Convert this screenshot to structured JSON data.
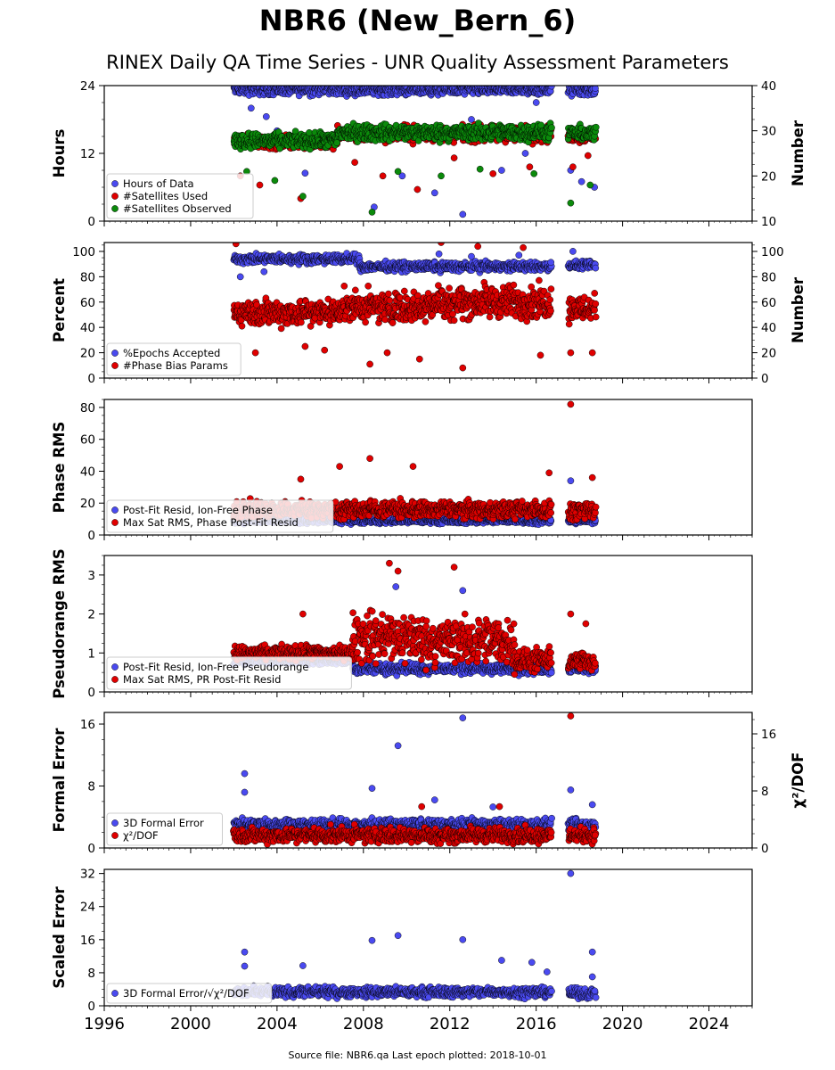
{
  "title": "NBR6 (New_Bern_6)",
  "subtitle": "RINEX Daily QA Time Series - UNR Quality Assessment Parameters",
  "footer": "Source file: NBR6.qa Last epoch plotted: 2018-10-01",
  "colors": {
    "blue": "#4a4af0",
    "red": "#e00000",
    "green": "#0b8a0b",
    "edge": "#000000"
  },
  "chart_data": [
    {
      "type": "scatter",
      "ylabel": "Hours",
      "ylabel_right": "Number",
      "ylim": [
        0,
        24
      ],
      "yticks": [
        0,
        12,
        24
      ],
      "ylim_right": [
        10,
        40
      ],
      "yticks_right": [
        10,
        20,
        30,
        40
      ],
      "xlim": [
        1996,
        2026
      ],
      "legend": "lower-left",
      "series": [
        {
          "name": "Hours of Data",
          "color": "blue",
          "axis": "left",
          "segments": [
            {
              "x": [
                2002.0,
                2016.7
              ],
              "base": 23.3,
              "spread": 0.8,
              "outliers": [
                [
                  2002.8,
                  20.0
                ],
                [
                  2003.5,
                  18.5
                ],
                [
                  2004.0,
                  16.0
                ],
                [
                  2005.3,
                  8.5
                ],
                [
                  2006.1,
                  14.5
                ],
                [
                  2008.5,
                  2.5
                ],
                [
                  2009.8,
                  8.0
                ],
                [
                  2011.3,
                  5.0
                ],
                [
                  2012.6,
                  1.2
                ],
                [
                  2013.0,
                  18.0
                ],
                [
                  2014.4,
                  9.0
                ],
                [
                  2015.5,
                  12.0
                ],
                [
                  2016.0,
                  21.0
                ]
              ]
            },
            {
              "x": [
                2017.5,
                2018.75
              ],
              "base": 23.2,
              "spread": 0.9,
              "outliers": [
                [
                  2017.6,
                  9.0
                ],
                [
                  2018.1,
                  7.0
                ],
                [
                  2018.7,
                  6.0
                ]
              ]
            }
          ]
        },
        {
          "name": "#Satellites Used",
          "color": "red",
          "axis": "right",
          "segments": [
            {
              "x": [
                2002.0,
                2006.8
              ],
              "base": 27.5,
              "spread": 1.3,
              "outliers": [
                [
                  2002.3,
                  20.0
                ],
                [
                  2003.2,
                  18.0
                ],
                [
                  2005.1,
                  15.0
                ]
              ]
            },
            {
              "x": [
                2006.8,
                2016.7
              ],
              "base": 29.3,
              "spread": 1.5,
              "outliers": [
                [
                  2007.6,
                  23.0
                ],
                [
                  2008.9,
                  20.0
                ],
                [
                  2010.5,
                  17.0
                ],
                [
                  2012.2,
                  24.0
                ],
                [
                  2014.0,
                  20.5
                ],
                [
                  2015.7,
                  22.0
                ]
              ]
            },
            {
              "x": [
                2017.5,
                2018.75
              ],
              "base": 29.0,
              "spread": 1.4,
              "outliers": [
                [
                  2017.7,
                  22.0
                ],
                [
                  2018.4,
                  24.5
                ]
              ]
            }
          ]
        },
        {
          "name": "#Satellites Observed",
          "color": "green",
          "axis": "right",
          "segments": [
            {
              "x": [
                2002.0,
                2006.8
              ],
              "base": 27.8,
              "spread": 1.4,
              "outliers": [
                [
                  2002.6,
                  21.0
                ],
                [
                  2003.9,
                  19.0
                ],
                [
                  2005.2,
                  15.5
                ]
              ]
            },
            {
              "x": [
                2006.8,
                2016.7
              ],
              "base": 29.6,
              "spread": 1.5,
              "outliers": [
                [
                  2008.4,
                  12.0
                ],
                [
                  2009.6,
                  21.0
                ],
                [
                  2011.6,
                  20.0
                ],
                [
                  2013.4,
                  21.5
                ],
                [
                  2015.9,
                  20.5
                ]
              ]
            },
            {
              "x": [
                2017.5,
                2018.75
              ],
              "base": 29.4,
              "spread": 1.4,
              "outliers": [
                [
                  2017.6,
                  14.0
                ],
                [
                  2018.5,
                  18.0
                ]
              ]
            }
          ]
        }
      ]
    },
    {
      "type": "scatter",
      "ylabel": "Percent",
      "ylabel_right": "Number",
      "ylim": [
        0,
        107
      ],
      "yticks": [
        0,
        20,
        40,
        60,
        80,
        100
      ],
      "ylim_right": [
        0,
        107
      ],
      "yticks_right": [
        0,
        20,
        40,
        60,
        80,
        100
      ],
      "xlim": [
        1996,
        2026
      ],
      "legend": "lower-left",
      "series": [
        {
          "name": "%Epochs Accepted",
          "color": "blue",
          "axis": "left",
          "segments": [
            {
              "x": [
                2002.0,
                2007.8
              ],
              "base": 94,
              "spread": 3.0,
              "outliers": [
                [
                  2002.3,
                  80.0
                ],
                [
                  2003.4,
                  84.0
                ]
              ]
            },
            {
              "x": [
                2007.8,
                2016.7
              ],
              "base": 88,
              "spread": 3.0,
              "outliers": [
                [
                  2011.5,
                  98.0
                ],
                [
                  2013.0,
                  96.0
                ],
                [
                  2015.2,
                  97.0
                ]
              ]
            },
            {
              "x": [
                2017.5,
                2018.75
              ],
              "base": 89,
              "spread": 2.5,
              "outliers": [
                [
                  2017.7,
                  100.0
                ]
              ]
            }
          ]
        },
        {
          "name": "#Phase Bias Params",
          "color": "red",
          "axis": "right",
          "segments": [
            {
              "x": [
                2002.0,
                2006.8
              ],
              "base": 52,
              "spread": 9.0,
              "outliers": [
                [
                  2002.1,
                  106.0
                ],
                [
                  2003.0,
                  20.0
                ],
                [
                  2005.3,
                  25.0
                ],
                [
                  2006.2,
                  22.0
                ]
              ]
            },
            {
              "x": [
                2006.8,
                2011.0
              ],
              "base": 56,
              "spread": 10.0,
              "outliers": [
                [
                  2008.3,
                  11.0
                ],
                [
                  2009.1,
                  20.0
                ],
                [
                  2010.6,
                  15.0
                ]
              ]
            },
            {
              "x": [
                2011.0,
                2016.7
              ],
              "base": 60,
              "spread": 11.0,
              "outliers": [
                [
                  2011.6,
                  107.0
                ],
                [
                  2012.6,
                  8.0
                ],
                [
                  2013.3,
                  104.0
                ],
                [
                  2015.4,
                  103.0
                ],
                [
                  2016.2,
                  18.0
                ]
              ]
            },
            {
              "x": [
                2017.5,
                2018.75
              ],
              "base": 55,
              "spread": 9.0,
              "outliers": [
                [
                  2017.6,
                  20.0
                ],
                [
                  2018.6,
                  20.0
                ]
              ]
            }
          ]
        }
      ]
    },
    {
      "type": "scatter",
      "ylabel": "Phase RMS",
      "ylim": [
        0,
        85
      ],
      "yticks": [
        0,
        20,
        40,
        60,
        80
      ],
      "xlim": [
        1996,
        2026
      ],
      "legend": "lower-left",
      "series": [
        {
          "name": "Post-Fit Resid, Ion-Free Phase",
          "color": "blue",
          "axis": "left",
          "segments": [
            {
              "x": [
                2002.0,
                2016.7
              ],
              "base": 9,
              "spread": 1.5,
              "outliers": []
            },
            {
              "x": [
                2017.5,
                2018.75
              ],
              "base": 9,
              "spread": 1.5,
              "outliers": [
                [
                  2017.6,
                  34.0
                ]
              ]
            }
          ]
        },
        {
          "name": "Max Sat RMS, Phase Post-Fit Resid",
          "color": "red",
          "axis": "left",
          "segments": [
            {
              "x": [
                2002.0,
                2016.7
              ],
              "base": 16,
              "spread": 4.5,
              "outliers": [
                [
                  2006.9,
                  43.0
                ],
                [
                  2008.3,
                  48.0
                ],
                [
                  2010.3,
                  43.0
                ],
                [
                  2005.1,
                  35.0
                ],
                [
                  2016.6,
                  39.0
                ]
              ]
            },
            {
              "x": [
                2017.5,
                2018.75
              ],
              "base": 15,
              "spread": 4.5,
              "outliers": [
                [
                  2017.6,
                  82.0
                ],
                [
                  2018.6,
                  36.0
                ]
              ]
            }
          ]
        }
      ]
    },
    {
      "type": "scatter",
      "ylabel": "Pseudorange RMS",
      "ylim": [
        0,
        3.5
      ],
      "yticks": [
        0,
        1,
        2,
        3
      ],
      "xlim": [
        1996,
        2026
      ],
      "legend": "lower-left",
      "series": [
        {
          "name": "Post-Fit Resid, Ion-Free Pseudorange",
          "color": "blue",
          "axis": "left",
          "segments": [
            {
              "x": [
                2002.0,
                2007.5
              ],
              "base": 0.8,
              "spread": 0.08,
              "outliers": []
            },
            {
              "x": [
                2007.5,
                2016.7
              ],
              "base": 0.6,
              "spread": 0.12,
              "outliers": [
                [
                  2009.5,
                  2.7
                ],
                [
                  2012.6,
                  2.6
                ]
              ]
            },
            {
              "x": [
                2017.5,
                2018.75
              ],
              "base": 0.6,
              "spread": 0.1,
              "outliers": []
            }
          ]
        },
        {
          "name": "Max Sat RMS, PR Post-Fit Resid",
          "color": "red",
          "axis": "left",
          "segments": [
            {
              "x": [
                2002.0,
                2007.5
              ],
              "base": 1.0,
              "spread": 0.15,
              "outliers": [
                [
                  2005.2,
                  2.0
                ]
              ]
            },
            {
              "x": [
                2007.5,
                2010.6
              ],
              "base": 1.4,
              "spread": 0.55,
              "outliers": [
                [
                  2009.2,
                  3.3
                ],
                [
                  2009.6,
                  3.1
                ]
              ]
            },
            {
              "x": [
                2010.6,
                2015.0
              ],
              "base": 1.3,
              "spread": 0.5,
              "outliers": [
                [
                  2012.2,
                  3.2
                ]
              ]
            },
            {
              "x": [
                2015.0,
                2016.7
              ],
              "base": 0.8,
              "spread": 0.25,
              "outliers": []
            },
            {
              "x": [
                2017.5,
                2018.75
              ],
              "base": 0.8,
              "spread": 0.2,
              "outliers": [
                [
                  2017.6,
                  2.0
                ],
                [
                  2018.3,
                  1.75
                ]
              ]
            }
          ]
        }
      ]
    },
    {
      "type": "scatter",
      "ylabel": "Formal Error",
      "ylabel_right": "χ²/DOF",
      "ylim": [
        0,
        17.5
      ],
      "yticks": [
        0,
        8,
        16
      ],
      "ylim_right": [
        0,
        19
      ],
      "yticks_right": [
        0,
        8,
        16
      ],
      "xlim": [
        1996,
        2026
      ],
      "legend": "lower-left",
      "series": [
        {
          "name": "3D Formal Error",
          "color": "blue",
          "axis": "left",
          "segments": [
            {
              "x": [
                2002.0,
                2016.7
              ],
              "base": 3.0,
              "spread": 0.6,
              "outliers": [
                [
                  2002.5,
                  9.6
                ],
                [
                  2002.5,
                  7.2
                ],
                [
                  2008.4,
                  7.7
                ],
                [
                  2009.6,
                  13.2
                ],
                [
                  2012.6,
                  16.8
                ],
                [
                  2011.3,
                  6.2
                ],
                [
                  2014.0,
                  5.3
                ]
              ]
            },
            {
              "x": [
                2017.5,
                2018.75
              ],
              "base": 3.0,
              "spread": 0.6,
              "outliers": [
                [
                  2017.6,
                  7.5
                ],
                [
                  2018.6,
                  5.6
                ]
              ]
            }
          ]
        },
        {
          "name": "χ²/DOF",
          "color": "red",
          "axis": "right",
          "segments": [
            {
              "x": [
                2002.0,
                2016.7
              ],
              "base": 1.8,
              "spread": 0.9,
              "outliers": [
                [
                  2010.7,
                  5.8
                ],
                [
                  2014.3,
                  5.8
                ]
              ]
            },
            {
              "x": [
                2017.5,
                2018.75
              ],
              "base": 1.8,
              "spread": 0.9,
              "outliers": [
                [
                  2017.6,
                  18.5
                ]
              ]
            }
          ]
        }
      ]
    },
    {
      "type": "scatter",
      "ylabel": "Scaled Error",
      "ylim": [
        0,
        33
      ],
      "yticks": [
        0,
        8,
        16,
        24,
        32
      ],
      "xlim": [
        1996,
        2026
      ],
      "xticks": [
        1996,
        2000,
        2004,
        2008,
        2012,
        2016,
        2020,
        2024
      ],
      "legend": "lower-left",
      "series": [
        {
          "name": "3D Formal Error/√χ²/DOF",
          "color": "blue",
          "axis": "left",
          "segments": [
            {
              "x": [
                2002.0,
                2016.7
              ],
              "base": 3.3,
              "spread": 1.0,
              "outliers": [
                [
                  2002.5,
                  13.0
                ],
                [
                  2002.5,
                  9.6
                ],
                [
                  2005.2,
                  9.7
                ],
                [
                  2008.4,
                  15.8
                ],
                [
                  2009.6,
                  17.0
                ],
                [
                  2012.6,
                  16.0
                ],
                [
                  2014.4,
                  11.0
                ],
                [
                  2015.8,
                  10.5
                ],
                [
                  2016.5,
                  8.2
                ]
              ]
            },
            {
              "x": [
                2017.5,
                2018.75
              ],
              "base": 3.0,
              "spread": 1.0,
              "outliers": [
                [
                  2017.6,
                  32.0
                ],
                [
                  2018.6,
                  13.0
                ],
                [
                  2018.6,
                  7.0
                ]
              ]
            }
          ]
        }
      ]
    }
  ]
}
